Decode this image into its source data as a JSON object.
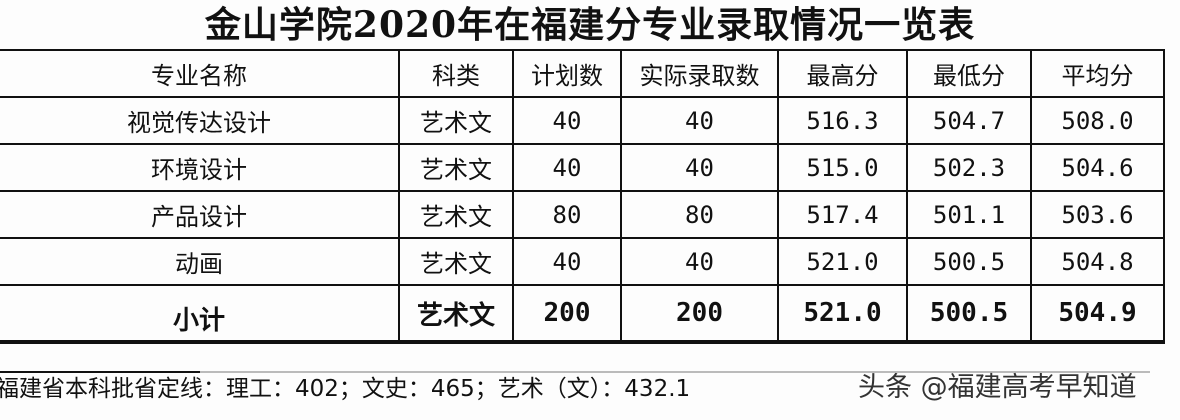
{
  "title": "金山学院2020年在福建分专业录取情况一览表",
  "table": {
    "headers": [
      "专业名称",
      "科类",
      "计划数",
      "实际录取数",
      "最高分",
      "最低分",
      "平均分"
    ],
    "rows": [
      [
        "视觉传达设计",
        "艺术文",
        "40",
        "40",
        "516.3",
        "504.7",
        "508.0"
      ],
      [
        "环境设计",
        "艺术文",
        "40",
        "40",
        "515.0",
        "502.3",
        "504.6"
      ],
      [
        "产品设计",
        "艺术文",
        "80",
        "80",
        "517.4",
        "501.1",
        "503.6"
      ],
      [
        "动画",
        "艺术文",
        "40",
        "40",
        "521.0",
        "500.5",
        "504.8"
      ]
    ],
    "subtotal": [
      "小计",
      "艺术文",
      "200",
      "200",
      "521.0",
      "500.5",
      "504.9"
    ]
  },
  "footer": "福建省本科批省定线：理工：402；文史：465；艺术（文）：432.1",
  "watermark": "头条 @福建高考早知道"
}
